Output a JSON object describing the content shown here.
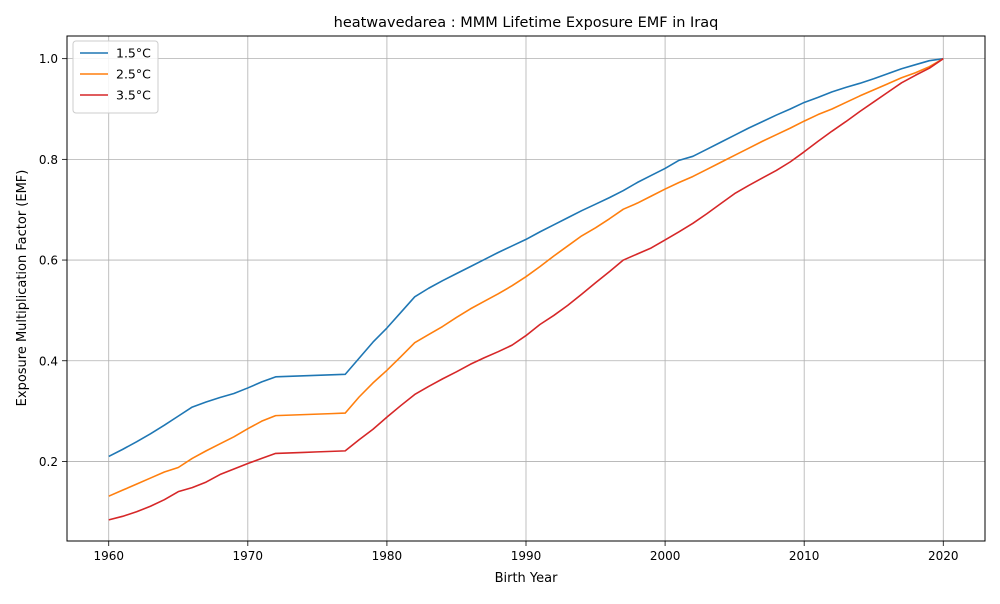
{
  "chart_data": {
    "type": "line",
    "title": "heatwavedarea : MMM Lifetime Exposure EMF in Iraq",
    "xlabel": "Birth Year",
    "ylabel": "Exposure Multiplication Factor (EMF)",
    "xlim": [
      1957,
      2023
    ],
    "ylim": [
      0.042,
      1.045
    ],
    "xticks": [
      1960,
      1970,
      1980,
      1990,
      2000,
      2010,
      2020
    ],
    "yticks": [
      0.2,
      0.4,
      0.6,
      0.8,
      1.0
    ],
    "xtick_labels": [
      "1960",
      "1970",
      "1980",
      "1990",
      "2000",
      "2010",
      "2020"
    ],
    "ytick_labels": [
      "0.2",
      "0.4",
      "0.6",
      "0.8",
      "1.0"
    ],
    "grid": true,
    "legend": "top-left",
    "x": [
      1960,
      1961,
      1962,
      1963,
      1964,
      1965,
      1966,
      1967,
      1968,
      1969,
      1970,
      1971,
      1972,
      1973,
      1974,
      1975,
      1976,
      1977,
      1978,
      1979,
      1980,
      1981,
      1982,
      1983,
      1984,
      1985,
      1986,
      1987,
      1988,
      1989,
      1990,
      1991,
      1992,
      1993,
      1994,
      1995,
      1996,
      1997,
      1998,
      1999,
      2000,
      2001,
      2002,
      2003,
      2004,
      2005,
      2006,
      2007,
      2008,
      2009,
      2010,
      2011,
      2012,
      2013,
      2014,
      2015,
      2016,
      2017,
      2018,
      2019,
      2020
    ],
    "series": [
      {
        "name": "1.5°C",
        "color": "#1f77b4",
        "values": [
          0.21,
          0.224,
          0.239,
          0.255,
          0.272,
          0.29,
          0.308,
          0.318,
          0.327,
          0.335,
          0.346,
          0.358,
          0.368,
          0.369,
          0.37,
          0.371,
          0.372,
          0.373,
          0.405,
          0.437,
          0.465,
          0.496,
          0.527,
          0.544,
          0.559,
          0.573,
          0.587,
          0.601,
          0.615,
          0.628,
          0.641,
          0.656,
          0.67,
          0.684,
          0.698,
          0.711,
          0.724,
          0.738,
          0.754,
          0.768,
          0.782,
          0.798,
          0.806,
          0.82,
          0.834,
          0.848,
          0.862,
          0.875,
          0.888,
          0.9,
          0.913,
          0.923,
          0.934,
          0.943,
          0.951,
          0.96,
          0.97,
          0.98,
          0.988,
          0.996,
          1.0
        ]
      },
      {
        "name": "2.5°C",
        "color": "#ff7f0e",
        "values": [
          0.131,
          0.143,
          0.155,
          0.167,
          0.179,
          0.188,
          0.206,
          0.221,
          0.235,
          0.249,
          0.265,
          0.28,
          0.291,
          0.292,
          0.293,
          0.294,
          0.295,
          0.296,
          0.328,
          0.356,
          0.381,
          0.408,
          0.436,
          0.452,
          0.468,
          0.486,
          0.503,
          0.518,
          0.533,
          0.549,
          0.567,
          0.587,
          0.608,
          0.628,
          0.648,
          0.664,
          0.682,
          0.701,
          0.713,
          0.727,
          0.741,
          0.754,
          0.766,
          0.78,
          0.794,
          0.808,
          0.822,
          0.836,
          0.849,
          0.862,
          0.876,
          0.889,
          0.9,
          0.913,
          0.926,
          0.938,
          0.95,
          0.962,
          0.972,
          0.984,
          1.0
        ]
      },
      {
        "name": "3.5°C",
        "color": "#d62728",
        "values": [
          0.084,
          0.091,
          0.1,
          0.111,
          0.124,
          0.14,
          0.148,
          0.159,
          0.174,
          0.185,
          0.196,
          0.206,
          0.216,
          0.217,
          0.218,
          0.219,
          0.22,
          0.221,
          0.243,
          0.264,
          0.288,
          0.311,
          0.333,
          0.349,
          0.364,
          0.378,
          0.393,
          0.406,
          0.418,
          0.431,
          0.45,
          0.472,
          0.49,
          0.51,
          0.532,
          0.555,
          0.577,
          0.6,
          0.612,
          0.624,
          0.64,
          0.656,
          0.673,
          0.692,
          0.712,
          0.732,
          0.748,
          0.763,
          0.778,
          0.795,
          0.815,
          0.836,
          0.856,
          0.875,
          0.895,
          0.914,
          0.933,
          0.952,
          0.967,
          0.981,
          1.0
        ]
      }
    ]
  }
}
